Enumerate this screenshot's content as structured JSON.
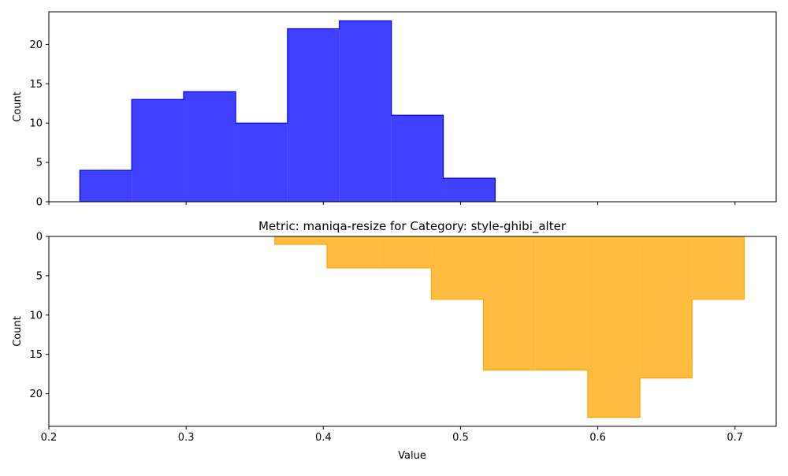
{
  "chart_data": [
    {
      "type": "histogram",
      "title": "",
      "xlabel": "",
      "ylabel": "Count",
      "xlim": [
        0.2,
        0.73
      ],
      "ylim": [
        0,
        24.15
      ],
      "y_inverted": false,
      "grid": false,
      "legend": "none",
      "color_fill": "#0000ff",
      "color_edge": "#0000ff",
      "bin_edges": [
        0.2226,
        0.2604,
        0.2982,
        0.3361,
        0.3739,
        0.4117,
        0.4496,
        0.4874,
        0.5252
      ],
      "counts": [
        4,
        13,
        14,
        10,
        22,
        23,
        11,
        3
      ],
      "xticks": [
        0.2,
        0.3,
        0.4,
        0.5,
        0.6,
        0.7
      ],
      "xtick_labels": [],
      "yticks": [
        0,
        5,
        10,
        15,
        20
      ],
      "ytick_labels": [
        "0",
        "5",
        "10",
        "15",
        "20"
      ]
    },
    {
      "type": "histogram",
      "title": "Metric: maniqa-resize for Category: style-ghibi_alter",
      "xlabel": "Value",
      "ylabel": "Count",
      "xlim": [
        0.2,
        0.73
      ],
      "ylim": [
        0,
        24.15
      ],
      "y_inverted": true,
      "grid": false,
      "legend": "none",
      "color_fill": "#ffa500",
      "color_edge": "#ffa500",
      "bin_edges": [
        0.3647,
        0.4027,
        0.4407,
        0.4787,
        0.5167,
        0.5547,
        0.5927,
        0.6307,
        0.6687,
        0.7067
      ],
      "counts": [
        1,
        4,
        4,
        8,
        17,
        17,
        23,
        18,
        8
      ],
      "xticks": [
        0.2,
        0.3,
        0.4,
        0.5,
        0.6,
        0.7
      ],
      "xtick_labels": [
        "0.2",
        "0.3",
        "0.4",
        "0.5",
        "0.6",
        "0.7"
      ],
      "yticks": [
        0,
        5,
        10,
        15,
        20
      ],
      "ytick_labels": [
        "0",
        "5",
        "10",
        "15",
        "20"
      ]
    }
  ]
}
